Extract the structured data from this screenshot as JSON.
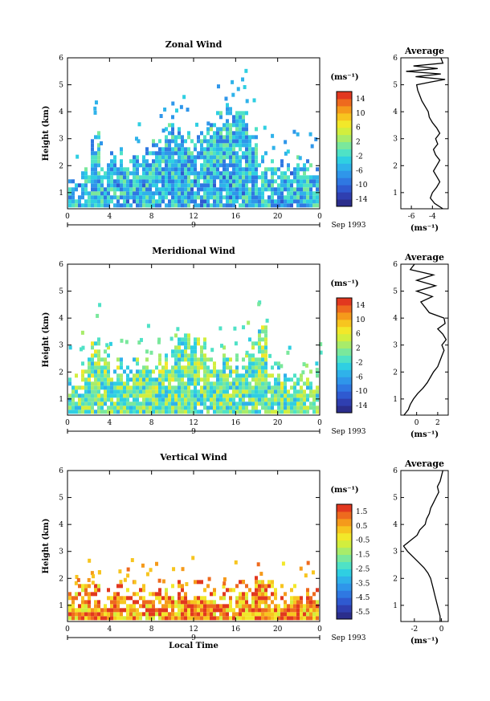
{
  "colormap": [
    "#2b2e8c",
    "#2f3fb0",
    "#2f5ad0",
    "#2f78e2",
    "#2f96ea",
    "#2fb2ea",
    "#2fcfe2",
    "#4fe2c6",
    "#7ae89c",
    "#a8ec6a",
    "#d2ee3e",
    "#f2e82a",
    "#f7c51f",
    "#f59a1b",
    "#ee6a1e",
    "#e2381f"
  ],
  "chart_data": [
    {
      "type": "heatmap",
      "title": "Zonal Wind",
      "ylabel": "Height (km)",
      "xlabel": "",
      "unit": "(ms⁻¹)",
      "date_label": "Sep 1993",
      "x_ticks": [
        "0",
        "4",
        "8",
        "12",
        "16",
        "20",
        "0"
      ],
      "x_day_label": "9",
      "xlim": [
        0,
        24
      ],
      "y_ticks": [
        "1",
        "2",
        "3",
        "4",
        "5",
        "6"
      ],
      "ylim": [
        0.4,
        6
      ],
      "colorbar_ticks": [
        "14",
        "10",
        "6",
        "2",
        "-2",
        "-6",
        "-10",
        "-14"
      ],
      "colorbar_range": [
        -16,
        16
      ],
      "coverage_top_km": [
        1.4,
        1.8,
        3.3,
        2.0,
        2.6,
        2.2,
        2.4,
        2.6,
        3.0,
        3.6,
        3.3,
        3.2,
        3.0,
        3.4,
        3.8,
        4.0,
        4.3,
        3.2,
        2.3,
        2.0,
        2.2,
        2.1,
        2.0
      ],
      "typical_value": -5,
      "average_profile": {
        "title": "Average",
        "xlabel": "(ms⁻¹)",
        "x_ticks": [
          "-6",
          "-4"
        ],
        "xlim": [
          -7,
          -2.5
        ],
        "y_ticks": [
          "1",
          "2",
          "3",
          "4",
          "5",
          "6"
        ],
        "height_km": [
          0.4,
          0.6,
          0.8,
          1.0,
          1.2,
          1.4,
          1.6,
          1.8,
          2.0,
          2.2,
          2.4,
          2.6,
          2.8,
          3.0,
          3.2,
          3.4,
          3.6,
          3.8,
          4.0,
          4.2,
          4.4,
          4.6,
          4.8,
          5.0,
          5.1,
          5.2,
          5.3,
          5.4,
          5.5,
          5.6,
          5.7,
          5.8,
          6.0
        ],
        "values": [
          -3.0,
          -3.8,
          -4.2,
          -4.0,
          -3.6,
          -3.3,
          -3.6,
          -3.9,
          -3.6,
          -3.3,
          -3.7,
          -3.9,
          -3.5,
          -3.7,
          -3.3,
          -3.6,
          -4.0,
          -4.3,
          -4.4,
          -4.7,
          -5.0,
          -5.2,
          -5.4,
          -5.5,
          -4.2,
          -2.8,
          -5.6,
          -3.2,
          -6.5,
          -3.5,
          -5.8,
          -3.0,
          -3.2
        ]
      }
    },
    {
      "type": "heatmap",
      "title": "Meridional Wind",
      "ylabel": "Height (km)",
      "xlabel": "",
      "unit": "(ms⁻¹)",
      "date_label": "Sep 1993",
      "x_ticks": [
        "0",
        "4",
        "8",
        "12",
        "16",
        "20",
        "0"
      ],
      "x_day_label": "9",
      "xlim": [
        0,
        24
      ],
      "y_ticks": [
        "1",
        "2",
        "3",
        "4",
        "5",
        "6"
      ],
      "ylim": [
        0.4,
        6
      ],
      "colorbar_ticks": [
        "14",
        "10",
        "6",
        "2",
        "-2",
        "-6",
        "-10",
        "-14"
      ],
      "colorbar_range": [
        -16,
        16
      ],
      "coverage_top_km": [
        1.8,
        2.2,
        3.4,
        2.8,
        2.3,
        2.2,
        2.4,
        2.6,
        2.4,
        2.8,
        3.2,
        3.5,
        3.3,
        2.6,
        2.7,
        2.6,
        2.5,
        3.3,
        3.6,
        2.4,
        2.1,
        2.0,
        1.9
      ],
      "typical_value": 0,
      "average_profile": {
        "title": "Average",
        "xlabel": "(ms⁻¹)",
        "x_ticks": [
          "0",
          "2"
        ],
        "xlim": [
          -1.5,
          3
        ],
        "y_ticks": [
          "1",
          "2",
          "3",
          "4",
          "5",
          "6"
        ],
        "height_km": [
          0.4,
          0.6,
          0.8,
          1.0,
          1.2,
          1.4,
          1.6,
          1.8,
          2.0,
          2.2,
          2.4,
          2.6,
          2.8,
          3.0,
          3.2,
          3.4,
          3.6,
          3.8,
          4.0,
          4.2,
          4.4,
          4.6,
          4.8,
          5.0,
          5.2,
          5.4,
          5.6,
          5.8,
          6.0
        ],
        "values": [
          -1.2,
          -0.8,
          -0.6,
          -0.3,
          0.1,
          0.6,
          1.0,
          1.3,
          1.6,
          2.0,
          2.2,
          2.4,
          2.6,
          2.4,
          2.8,
          2.5,
          2.0,
          2.7,
          2.6,
          1.2,
          0.8,
          0.4,
          1.5,
          0.0,
          1.8,
          0.0,
          1.6,
          -0.6,
          -0.2
        ]
      }
    },
    {
      "type": "heatmap",
      "title": "Vertical Wind",
      "ylabel": "Height (km)",
      "xlabel": "Local Time",
      "unit": "(ms⁻¹)",
      "date_label": "Sep 1993",
      "x_ticks": [
        "0",
        "4",
        "8",
        "12",
        "16",
        "20",
        "0"
      ],
      "x_day_label": "9",
      "xlim": [
        0,
        24
      ],
      "y_ticks": [
        "1",
        "2",
        "3",
        "4",
        "5",
        "6"
      ],
      "ylim": [
        0.4,
        6
      ],
      "colorbar_ticks": [
        "1.5",
        "0.5",
        "-0.5",
        "-1.5",
        "-2.5",
        "-3.5",
        "-4.5",
        "-5.5"
      ],
      "colorbar_range": [
        -6,
        2
      ],
      "coverage_top_km": [
        1.6,
        1.7,
        1.7,
        1.6,
        1.6,
        1.5,
        1.7,
        1.7,
        1.6,
        1.7,
        1.7,
        1.6,
        1.8,
        1.7,
        1.6,
        1.7,
        1.8,
        1.8,
        1.8,
        1.7,
        1.6,
        1.6,
        1.5
      ],
      "typical_value": 0.6,
      "average_profile": {
        "title": "Average",
        "xlabel": "(ms⁻¹)",
        "x_ticks": [
          "-2",
          "0"
        ],
        "xlim": [
          -3,
          0.5
        ],
        "y_ticks": [
          "1",
          "2",
          "3",
          "4",
          "5",
          "6"
        ],
        "height_km": [
          0.4,
          0.6,
          0.8,
          1.0,
          1.2,
          1.4,
          1.6,
          1.8,
          2.0,
          2.2,
          2.4,
          2.6,
          2.8,
          3.0,
          3.2,
          3.4,
          3.6,
          3.8,
          4.0,
          4.2,
          4.4,
          4.6,
          4.8,
          5.0,
          5.2,
          5.4,
          5.6,
          5.8,
          6.0
        ],
        "values": [
          -0.1,
          -0.1,
          -0.2,
          -0.3,
          -0.4,
          -0.5,
          -0.6,
          -0.7,
          -0.8,
          -1.0,
          -1.3,
          -1.7,
          -2.1,
          -2.5,
          -2.8,
          -2.3,
          -1.8,
          -1.6,
          -1.2,
          -1.1,
          -0.9,
          -0.8,
          -0.6,
          -0.4,
          -0.2,
          -0.3,
          -0.1,
          0.0,
          0.1
        ]
      }
    }
  ]
}
